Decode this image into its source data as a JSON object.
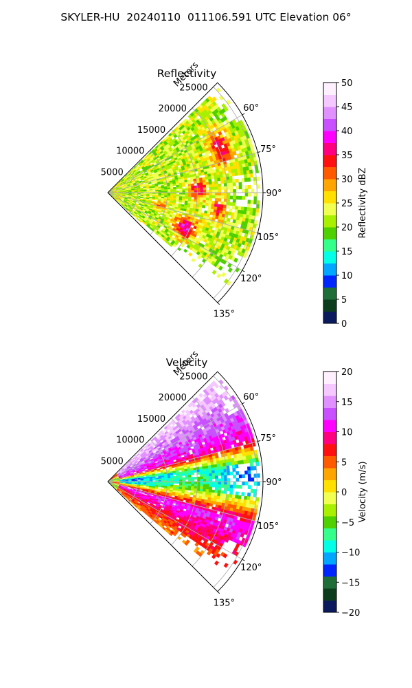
{
  "figure": {
    "title": "SKYLER-HU  20240110  011106.591 UTC Elevation 06°"
  },
  "chart_data": [
    {
      "type": "heatmap",
      "projection": "polar-sector",
      "title": "Reflectivity",
      "radial_label": "Meters",
      "radial_ticks": [
        "5000",
        "10000",
        "15000",
        "20000",
        "25000"
      ],
      "radial_tick_values": [
        5000,
        10000,
        15000,
        20000,
        25000
      ],
      "range_max_m": 26000,
      "azimuth_ticks": [
        "60°",
        "75°",
        "90°",
        "105°",
        "120°",
        "135°"
      ],
      "azimuth_tick_values": [
        60,
        75,
        90,
        105,
        120,
        135
      ],
      "azimuth_range_deg": [
        45,
        135
      ],
      "grid": true,
      "colorbar": {
        "label": "Reflectivity dBZ",
        "min": 0,
        "max": 50,
        "ticks": [
          "0",
          "5",
          "10",
          "15",
          "20",
          "25",
          "30",
          "35",
          "40",
          "45",
          "50"
        ]
      },
      "colormap": [
        "#0a1a5c",
        "#0b3d1d",
        "#1f6e3a",
        "#0026ff",
        "#00a6ff",
        "#00ffe6",
        "#34ff8a",
        "#4fd000",
        "#a8f000",
        "#f0ff50",
        "#ffe000",
        "#ffa500",
        "#ff5a00",
        "#ff1010",
        "#ff0080",
        "#ff00ff",
        "#c850ff",
        "#e090ff",
        "#f5c8ff",
        "#fff0ff"
      ],
      "field_pattern": "mostly 20–30 dBZ echo with embedded bands of 35–45 dBZ"
    },
    {
      "type": "heatmap",
      "projection": "polar-sector",
      "title": "Velocity",
      "radial_label": "Meters",
      "radial_ticks": [
        "5000",
        "10000",
        "15000",
        "20000",
        "25000"
      ],
      "radial_tick_values": [
        5000,
        10000,
        15000,
        20000,
        25000
      ],
      "range_max_m": 26000,
      "azimuth_ticks": [
        "60°",
        "75°",
        "90°",
        "105°",
        "120°",
        "135°"
      ],
      "azimuth_tick_values": [
        60,
        75,
        90,
        105,
        120,
        135
      ],
      "azimuth_range_deg": [
        45,
        135
      ],
      "grid": true,
      "colorbar": {
        "label": "Velocity (m/s)",
        "min": -20,
        "max": 20,
        "ticks": [
          "−20",
          "−15",
          "−10",
          "−5",
          "0",
          "5",
          "10",
          "15",
          "20"
        ]
      },
      "colormap": [
        "#0a1a5c",
        "#0b3d1d",
        "#1f6e3a",
        "#0026ff",
        "#00a6ff",
        "#00ffe6",
        "#34ff8a",
        "#4fd000",
        "#a8f000",
        "#f0ff50",
        "#ffe000",
        "#ffa500",
        "#ff5a00",
        "#ff1010",
        "#ff0080",
        "#ff00ff",
        "#c850ff",
        "#e090ff",
        "#f5c8ff",
        "#fff0ff"
      ],
      "field_pattern": "positive (red/magenta) toward northern azimuths, negative (green/cyan) near 80–100°, positive again toward southern azimuths"
    }
  ]
}
